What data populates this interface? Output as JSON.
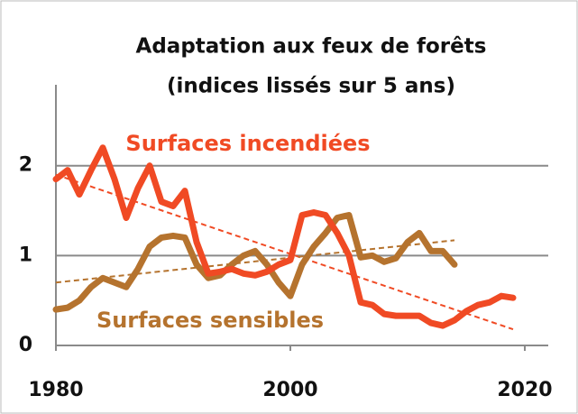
{
  "chart_data": {
    "type": "line",
    "title": [
      "Adaptation aux feux de forêts",
      "(indices lissés sur 5 ans)"
    ],
    "series": [
      {
        "name": "Surfaces incendiées",
        "color": "#f04a24",
        "x": [
          1980,
          1981,
          1982,
          1983,
          1984,
          1985,
          1986,
          1987,
          1988,
          1989,
          1990,
          1991,
          1992,
          1993,
          1994,
          1995,
          1996,
          1997,
          1998,
          1999,
          2000,
          2001,
          2002,
          2003,
          2004,
          2005,
          2006,
          2007,
          2008,
          2009,
          2010,
          2011,
          2012,
          2013,
          2014,
          2015,
          2016,
          2017,
          2018,
          2019
        ],
        "values": [
          1.85,
          1.95,
          1.68,
          1.95,
          2.2,
          1.85,
          1.42,
          1.75,
          2.0,
          1.6,
          1.55,
          1.72,
          1.15,
          0.8,
          0.82,
          0.85,
          0.8,
          0.78,
          0.82,
          0.9,
          0.95,
          1.45,
          1.48,
          1.45,
          1.25,
          1.0,
          0.48,
          0.45,
          0.35,
          0.33,
          0.33,
          0.33,
          0.25,
          0.22,
          0.28,
          0.38,
          0.45,
          0.48,
          0.55,
          0.53
        ]
      },
      {
        "name": "Surfaces sensibles",
        "color": "#b5732e",
        "x": [
          1980,
          1981,
          1982,
          1983,
          1984,
          1985,
          1986,
          1987,
          1988,
          1989,
          1990,
          1991,
          1992,
          1993,
          1994,
          1995,
          1996,
          1997,
          1998,
          1999,
          2000,
          2001,
          2002,
          2003,
          2004,
          2005,
          2006,
          2007,
          2008,
          2009,
          2010,
          2011,
          2012,
          2013,
          2014
        ],
        "values": [
          0.4,
          0.42,
          0.5,
          0.65,
          0.75,
          0.7,
          0.65,
          0.85,
          1.1,
          1.2,
          1.22,
          1.2,
          0.9,
          0.75,
          0.78,
          0.9,
          1.0,
          1.05,
          0.9,
          0.7,
          0.55,
          0.9,
          1.1,
          1.25,
          1.42,
          1.45,
          0.98,
          1.0,
          0.93,
          0.97,
          1.15,
          1.25,
          1.05,
          1.05,
          0.9
        ]
      }
    ],
    "trend_lines": [
      {
        "color": "#f04a24",
        "x": [
          1980,
          2019
        ],
        "values": [
          1.9,
          0.18
        ]
      },
      {
        "color": "#b5732e",
        "x": [
          1980,
          2014
        ],
        "values": [
          0.7,
          1.17
        ]
      }
    ],
    "xlim": [
      1980,
      2022
    ],
    "xticks": [
      1980,
      2000,
      2020
    ],
    "ylim": [
      0,
      2.9
    ],
    "yticks": [
      0,
      1,
      2
    ],
    "grid": true
  }
}
